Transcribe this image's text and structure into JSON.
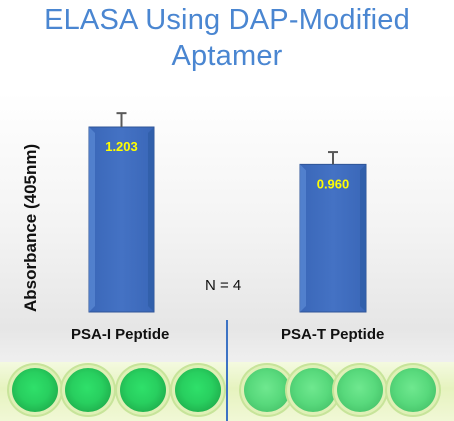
{
  "title_lines": [
    "ELASA Using DAP-Modified",
    "Aptamer"
  ],
  "chart_data": {
    "type": "bar",
    "title": "ELASA Using DAP-Modified Aptamer",
    "categories": [
      "PSA-I Peptide",
      "PSA-T Peptide"
    ],
    "values": [
      1.203,
      0.96
    ],
    "value_labels": [
      "1.203",
      "0.960"
    ],
    "error": [
      0.09,
      0.08
    ],
    "ylabel": "Absorbance (405nm)",
    "xlabel": "",
    "ylim": [
      0,
      1.203
    ],
    "grid": false,
    "legend": "none",
    "annotation": "N = 4",
    "bar_color": "#4472c4",
    "value_label_color": "#ffff00"
  },
  "plate": {
    "well_groups": [
      {
        "label": "PSA-I Peptide",
        "count": 4
      },
      {
        "label": "PSA-T Peptide",
        "count": 4
      }
    ],
    "colors": {
      "well_dark": "#28cf5f",
      "well_light": "#58d97c",
      "plate_bg": "#e6f3bf"
    }
  }
}
